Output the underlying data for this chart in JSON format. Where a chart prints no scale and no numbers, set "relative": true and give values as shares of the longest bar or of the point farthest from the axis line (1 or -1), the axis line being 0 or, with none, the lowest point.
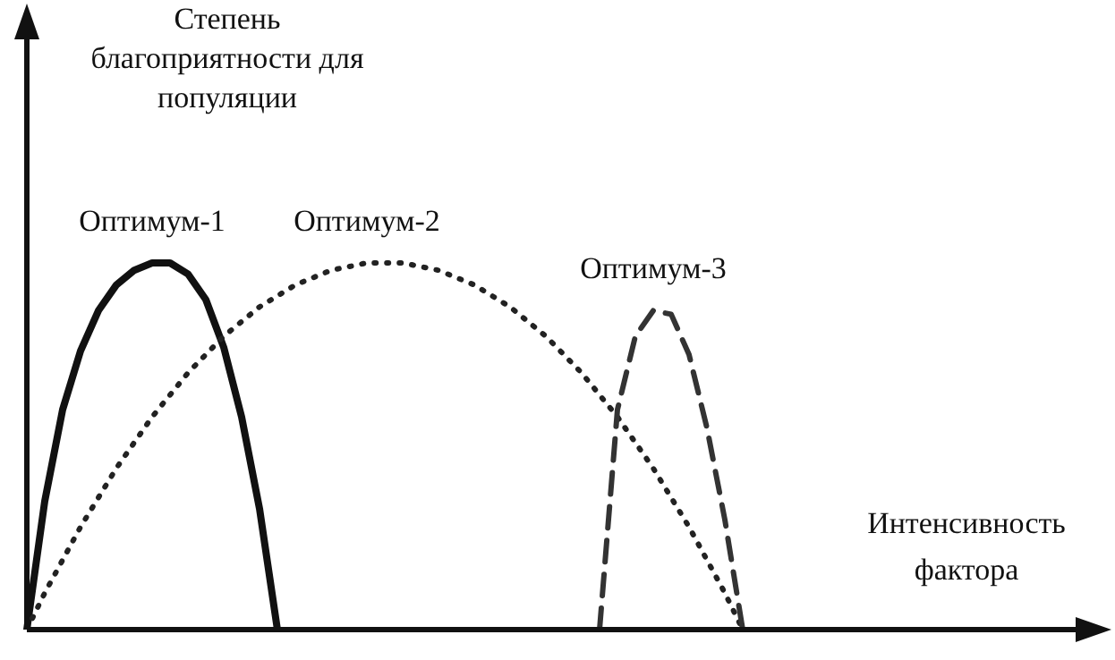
{
  "chart_data": {
    "type": "line",
    "relative": true,
    "ylabel": "Степень благоприятности для популяции",
    "xlabel": "Интенсивность фактора",
    "marker": "none",
    "categories": [
      null,
      null,
      null,
      null,
      null,
      null,
      null,
      null,
      null,
      null,
      null,
      null,
      null,
      null,
      null,
      null,
      null,
      null,
      null,
      null,
      null,
      null,
      null,
      null,
      null,
      null,
      null,
      null,
      null,
      null,
      null,
      null,
      null,
      null,
      null,
      null,
      null,
      null,
      null,
      null,
      null
    ],
    "series": [
      {
        "name": "Оптимум-1",
        "color": "#111111",
        "line_style": "solid",
        "values": [
          0,
          0.35,
          0.6,
          0.76,
          0.87,
          0.94,
          0.98,
          1,
          1,
          0.97,
          0.9,
          0.77,
          0.58,
          0.33,
          0,
          null,
          null,
          null,
          null,
          null,
          null,
          null,
          null,
          null,
          null,
          null,
          null,
          null,
          null,
          null,
          null,
          null,
          null,
          null,
          null,
          null,
          null,
          null,
          null,
          null,
          null
        ]
      },
      {
        "name": "Оптимум-2",
        "color": "#222222",
        "line_style": "dotted",
        "values": [
          0,
          0.1,
          0.19,
          0.28,
          0.36,
          0.44,
          0.51,
          0.58,
          0.64,
          0.7,
          0.75,
          0.8,
          0.84,
          0.88,
          0.91,
          0.94,
          0.96,
          0.98,
          0.99,
          1,
          1,
          1,
          0.99,
          0.98,
          0.96,
          0.94,
          0.91,
          0.88,
          0.84,
          0.8,
          0.75,
          0.7,
          0.64,
          0.58,
          0.51,
          0.44,
          0.36,
          0.28,
          0.19,
          0.1,
          0
        ]
      },
      {
        "name": "Оптимум-3",
        "color": "#333333",
        "line_style": "dashed",
        "values": [
          null,
          null,
          null,
          null,
          null,
          null,
          null,
          null,
          null,
          null,
          null,
          null,
          null,
          null,
          null,
          null,
          null,
          null,
          null,
          null,
          null,
          null,
          null,
          null,
          null,
          null,
          null,
          null,
          null,
          null,
          null,
          null,
          0,
          0.6,
          0.8,
          0.87,
          0.86,
          0.75,
          0.55,
          0.3,
          0
        ]
      }
    ]
  }
}
